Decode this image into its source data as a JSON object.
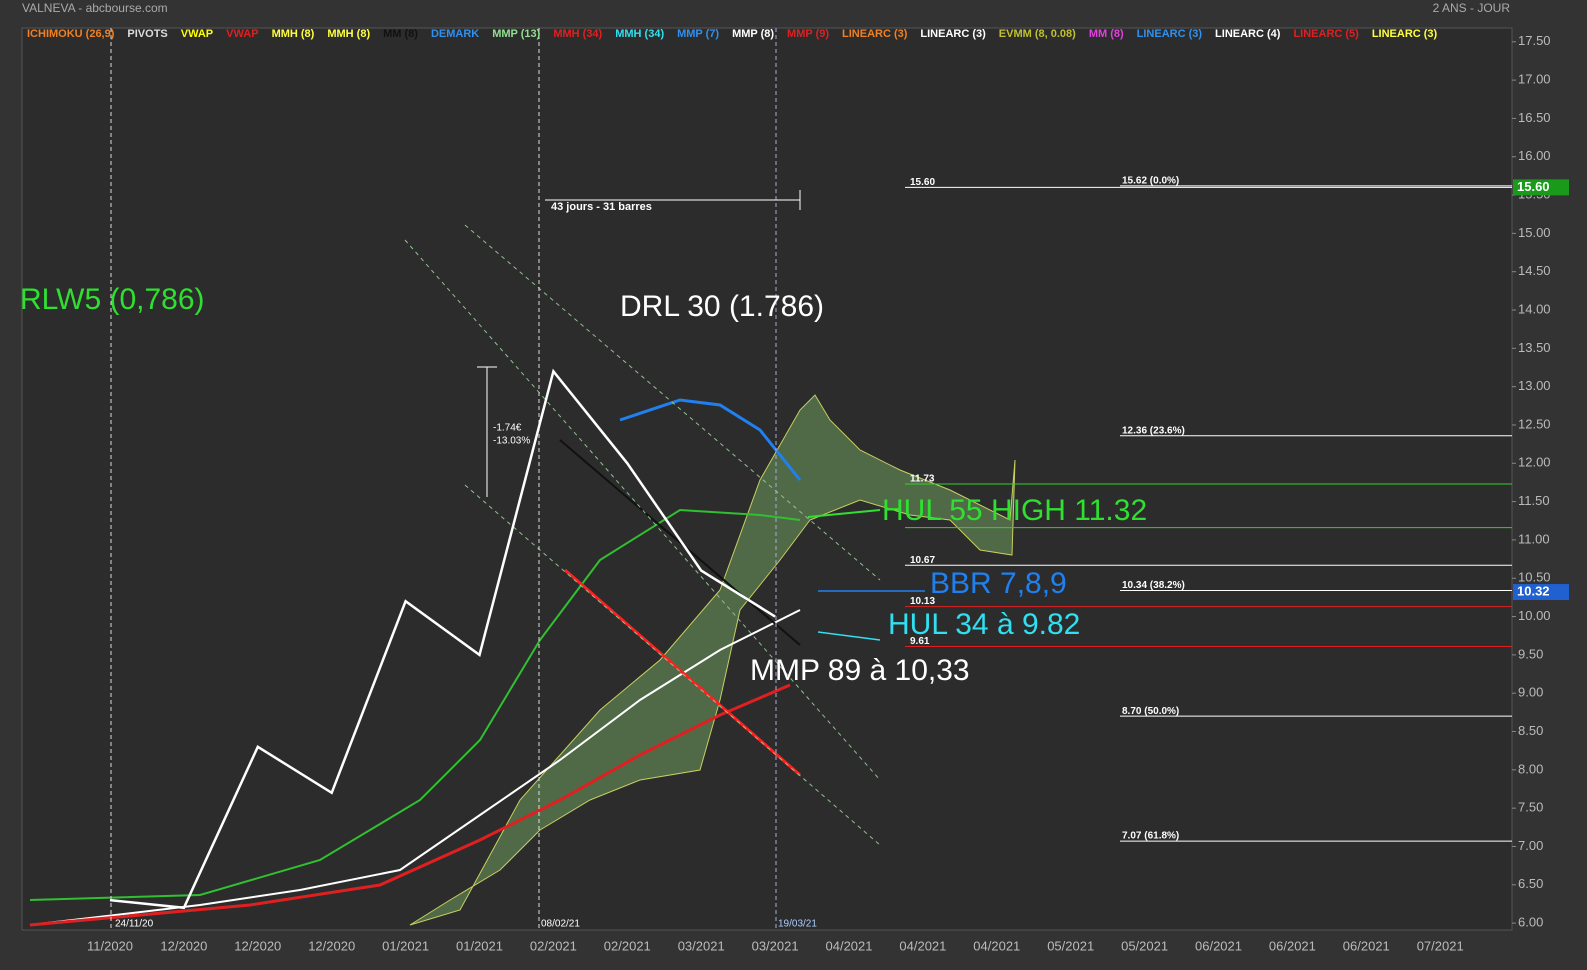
{
  "header": {
    "site": "VALNEVA - abcbourse.com",
    "period": "2 ANS - JOUR"
  },
  "chart_data": {
    "type": "line",
    "categories": [
      "11/2020",
      "12/2020",
      "12/2020",
      "12/2020",
      "01/2021",
      "01/2021",
      "02/2021",
      "02/2021",
      "03/2021",
      "03/2021",
      "04/2021",
      "04/2021",
      "04/2021",
      "05/2021",
      "05/2021",
      "06/2021",
      "06/2021",
      "06/2021",
      "07/2021"
    ],
    "values": [
      6.3,
      6.2,
      8.3,
      7.7,
      10.2,
      9.5,
      13.2,
      12.0,
      10.6,
      10.0,
      null,
      null,
      null,
      null,
      null,
      null,
      null,
      null,
      null
    ],
    "color": "#ffffff",
    "ylim": [
      5.91,
      17.68
    ],
    "yticks": [
      {
        "value": 6,
        "label": "6.00"
      },
      {
        "value": 6.5,
        "label": "6.50"
      },
      {
        "value": 7,
        "label": "7.00"
      },
      {
        "value": 7.5,
        "label": "7.50"
      },
      {
        "value": 8,
        "label": "8.00"
      },
      {
        "value": 8.5,
        "label": "8.50"
      },
      {
        "value": 9,
        "label": "9.00"
      },
      {
        "value": 9.5,
        "label": "9.50"
      },
      {
        "value": 10,
        "label": "10.00"
      },
      {
        "value": 10.5,
        "label": "10.50"
      },
      {
        "value": 11,
        "label": "11.00"
      },
      {
        "value": 11.5,
        "label": "11.50"
      },
      {
        "value": 12,
        "label": "12.00"
      },
      {
        "value": 12.5,
        "label": "12.50"
      },
      {
        "value": 13,
        "label": "13.00"
      },
      {
        "value": 13.5,
        "label": "13.50"
      },
      {
        "value": 14,
        "label": "14.00"
      },
      {
        "value": 14.5,
        "label": "14.50"
      },
      {
        "value": 15,
        "label": "15.00"
      },
      {
        "value": 15.5,
        "label": "15.50"
      },
      {
        "value": 16,
        "label": "16.00"
      },
      {
        "value": 16.5,
        "label": "16.50"
      },
      {
        "value": 17,
        "label": "17.00"
      },
      {
        "value": 17.5,
        "label": "17.50"
      }
    ],
    "indicators": [
      {
        "label": "ICHIMOKU (26,9)",
        "color": "#f08020"
      },
      {
        "label": "PIVOTS",
        "color": "#dddddd"
      },
      {
        "label": "VWAP",
        "color": "#ffff00"
      },
      {
        "label": "VWAP",
        "color": "#e02020"
      },
      {
        "label": "MMH (8)",
        "color": "#ffff40"
      },
      {
        "label": "MMH (8)",
        "color": "#ffff40"
      },
      {
        "label": "MM (8)",
        "color": "#111111"
      },
      {
        "label": "DEMARK",
        "color": "#3090f0"
      },
      {
        "label": "MMP (13)",
        "color": "#90e090"
      },
      {
        "label": "MMH (34)",
        "color": "#e02020"
      },
      {
        "label": "MMH (34)",
        "color": "#30e0f0"
      },
      {
        "label": "MMP (7)",
        "color": "#3090f0"
      },
      {
        "label": "MMP (8)",
        "color": "#ffffff"
      },
      {
        "label": "MMP (9)",
        "color": "#e02020"
      },
      {
        "label": "LINEARC (3)",
        "color": "#f08020"
      },
      {
        "label": "LINEARC (3)",
        "color": "#ffffff"
      },
      {
        "label": "EVMM (8, 0.08)",
        "color": "#c0c030"
      },
      {
        "label": "MM (8)",
        "color": "#e040e0"
      },
      {
        "label": "LINEARC (3)",
        "color": "#3090f0"
      },
      {
        "label": "LINEARC (4)",
        "color": "#ffffff"
      },
      {
        "label": "LINEARC (5)",
        "color": "#e02020"
      },
      {
        "label": "LINEARC (3)",
        "color": "#ffff40"
      }
    ],
    "levels": [
      {
        "value": 15.6,
        "label": "15.60",
        "color": "#ffffff"
      },
      {
        "value": 15.62,
        "label": "15.62  (0.0%)",
        "color": "#ffffff"
      },
      {
        "value": 12.36,
        "label": "12.36  (23.6%)",
        "color": "#ffffff"
      },
      {
        "value": 11.73,
        "label": "11.73",
        "color": "#30d030"
      },
      {
        "value": 11.16,
        "color": "#30d030"
      },
      {
        "value": 10.67,
        "label": "10.67",
        "color": "#ffffff"
      },
      {
        "value": 10.34,
        "label": "10.34  (38.2%)",
        "color": "#ffffff"
      },
      {
        "value": 10.13,
        "label": "10.13",
        "color": "#e02020"
      },
      {
        "value": 9.61,
        "label": "9.61",
        "color": "#e02020"
      },
      {
        "value": 8.7,
        "label": "8.70  (50.0%)",
        "color": "#ffffff"
      },
      {
        "value": 7.07,
        "label": "7.07  (61.8%)",
        "color": "#ffffff"
      }
    ],
    "badges": [
      {
        "value": 15.6,
        "label": "15.60",
        "color": "#1a9a1a"
      },
      {
        "value": 10.32,
        "label": "10.32",
        "color": "#2060d0"
      }
    ],
    "annotations": {
      "rlw": "RLW5 (0,786)",
      "drl": "DRL 30 (1.786)",
      "hul55": "HUL 55 HIGH 11.32",
      "bbr": "BBR 7,8,9",
      "hul34": "HUL 34 à 9.82",
      "mmp89": "MMP 89 à 10,33",
      "span": "43 jours - 31 barres",
      "drop_eur": "-1.74€",
      "drop_pct": "-13.03%",
      "date1": "24/11/20",
      "date2": "08/02/21",
      "date3": "19/03/21"
    }
  }
}
